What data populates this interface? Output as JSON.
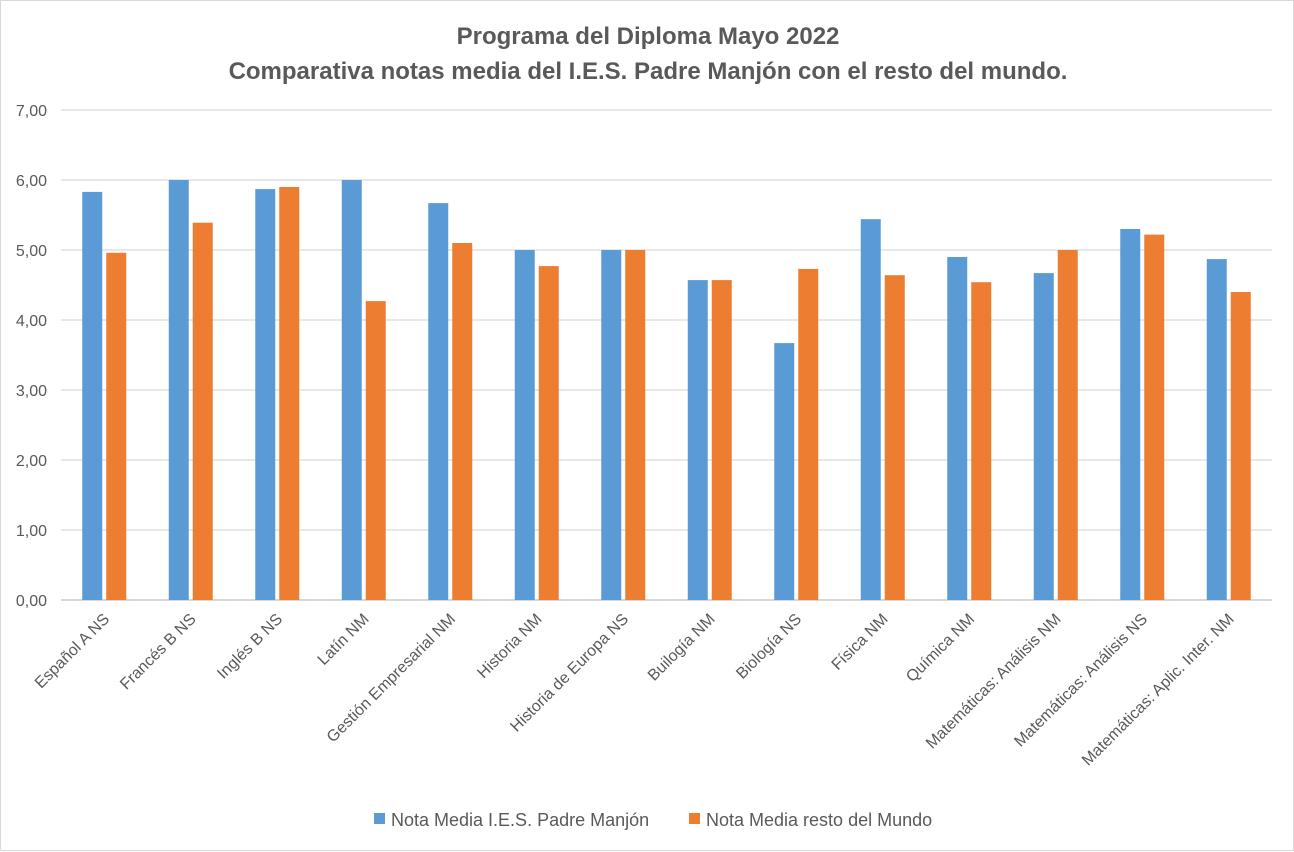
{
  "chart_data": {
    "type": "bar",
    "title": "Programa del Diploma Mayo 2022",
    "subtitle": "Comparativa notas media del I.E.S. Padre Manjón con el resto del mundo.",
    "xlabel": "",
    "ylabel": "",
    "ylim": [
      0,
      7
    ],
    "yticks": [
      "0,00",
      "1,00",
      "2,00",
      "3,00",
      "4,00",
      "5,00",
      "6,00",
      "7,00"
    ],
    "grid": true,
    "legend_position": "bottom",
    "categories": [
      "Español A NS",
      "Francés B NS",
      "Inglés B NS",
      "Latín NM",
      "Gestión Empresarial NM",
      "Historia NM",
      "Historia de Europa NS",
      "Builogía NM",
      "Biología NS",
      "Física NM",
      "Química NM",
      "Matemáticas: Análisis NM",
      "Matemáticas: Análisis NS",
      "Matemáticas: Aplic. Inter. NM"
    ],
    "series": [
      {
        "name": "Nota Media I.E.S. Padre Manjón",
        "color": "#5b9bd5",
        "values": [
          5.83,
          6.0,
          5.87,
          6.0,
          5.67,
          5.0,
          5.0,
          4.57,
          3.67,
          5.44,
          4.9,
          4.67,
          5.3,
          4.87
        ]
      },
      {
        "name": "Nota Media resto del Mundo",
        "color": "#ed7d31",
        "values": [
          4.96,
          5.39,
          5.9,
          4.27,
          5.1,
          4.77,
          5.0,
          4.57,
          4.73,
          4.64,
          4.54,
          5.0,
          5.22,
          4.4
        ]
      }
    ]
  }
}
